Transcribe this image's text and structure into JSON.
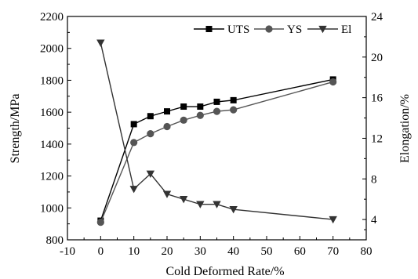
{
  "chart_data": {
    "type": "line",
    "title": "",
    "xlabel": "Cold Deformed Rate/%",
    "ylabel": "Strength/MPa",
    "y2label": "Elongation/%",
    "xlim": [
      -10,
      80
    ],
    "ylim": [
      800,
      2200
    ],
    "y2lim": [
      2,
      24
    ],
    "xticks": [
      -10,
      0,
      10,
      20,
      30,
      40,
      50,
      60,
      70,
      80
    ],
    "yticks": [
      800,
      1000,
      1200,
      1400,
      1600,
      1800,
      2000,
      2200
    ],
    "y2ticks": [
      4,
      8,
      12,
      16,
      20,
      24
    ],
    "grid": false,
    "legend": "top-right",
    "series": [
      {
        "name": "UTS",
        "axis": "left",
        "marker": "square",
        "color": "#000000",
        "x": [
          0,
          10,
          15,
          20,
          25,
          30,
          35,
          40,
          70
        ],
        "values": [
          920,
          1525,
          1575,
          1605,
          1635,
          1635,
          1665,
          1675,
          1805
        ]
      },
      {
        "name": "YS",
        "axis": "left",
        "marker": "circle",
        "color": "#555555",
        "x": [
          0,
          10,
          15,
          20,
          25,
          30,
          35,
          40,
          70
        ],
        "values": [
          910,
          1410,
          1465,
          1510,
          1550,
          1580,
          1605,
          1615,
          1790
        ]
      },
      {
        "name": "El",
        "axis": "right",
        "marker": "triangle-down",
        "color": "#333333",
        "x": [
          0,
          10,
          15,
          20,
          25,
          30,
          35,
          40,
          70
        ],
        "values": [
          21.4,
          7.0,
          8.5,
          6.5,
          6.0,
          5.5,
          5.5,
          5.0,
          4.0
        ]
      }
    ]
  }
}
